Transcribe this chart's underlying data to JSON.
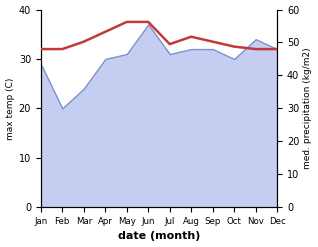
{
  "months": [
    "Jan",
    "Feb",
    "Mar",
    "Apr",
    "May",
    "Jun",
    "Jul",
    "Aug",
    "Sep",
    "Oct",
    "Nov",
    "Dec"
  ],
  "month_x": [
    1,
    2,
    3,
    4,
    5,
    6,
    7,
    8,
    9,
    10,
    11,
    12
  ],
  "temp_C": [
    32.0,
    32.0,
    33.5,
    35.5,
    37.5,
    37.5,
    33.0,
    34.5,
    33.5,
    32.5,
    32.0,
    32.0
  ],
  "precip_kg": [
    43.5,
    30.0,
    36.0,
    45.0,
    46.5,
    55.5,
    46.5,
    48.0,
    48.0,
    45.0,
    51.0,
    48.0
  ],
  "temp_color": "#c0393b",
  "precip_fill_color": "#c5cef0",
  "precip_edge_color": "#8090cc",
  "bg_color": "#ffffff",
  "ylabel_left": "max temp (C)",
  "ylabel_right": "med. precipitation (kg/m2)",
  "xlabel": "date (month)",
  "ylim_left": [
    0,
    40
  ],
  "ylim_right": [
    0,
    60
  ],
  "title": ""
}
